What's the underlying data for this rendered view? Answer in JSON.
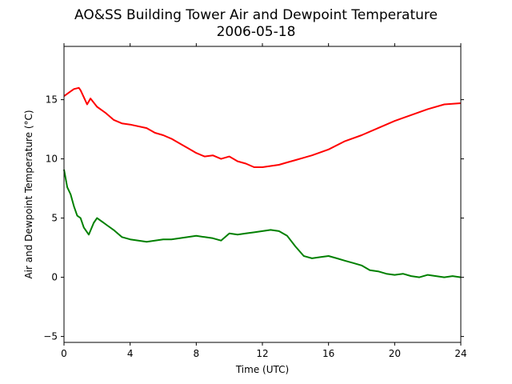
{
  "chart_data": {
    "type": "line",
    "title": "AO&SS Building Tower Air and Dewpoint Temperature",
    "subtitle": "2006-05-18",
    "xlabel": "Time (UTC)",
    "ylabel": "Air and Dewpoint Temperature (°C)",
    "xlim": [
      0,
      24
    ],
    "ylim": [
      -5.5,
      19.5
    ],
    "x_ticks": [
      0,
      4,
      8,
      12,
      16,
      20,
      24
    ],
    "y_ticks": [
      -5,
      0,
      5,
      10,
      15
    ],
    "grid": false,
    "series": [
      {
        "color": "#ff0000",
        "x": [
          0,
          0.3,
          0.6,
          0.9,
          1.0,
          1.2,
          1.4,
          1.6,
          2.0,
          2.5,
          3.0,
          3.5,
          4.0,
          5.0,
          5.5,
          6.0,
          6.5,
          7.0,
          7.5,
          8.0,
          8.5,
          9.0,
          9.5,
          10.0,
          10.5,
          11.0,
          11.5,
          12.0,
          12.5,
          13.0,
          13.5,
          14.0,
          15.0,
          16.0,
          17.0,
          18.0,
          19.0,
          20.0,
          21.0,
          22.0,
          23.0,
          24.0
        ],
        "values": [
          15.3,
          15.6,
          15.9,
          16.0,
          15.8,
          15.2,
          14.6,
          15.1,
          14.4,
          13.9,
          13.3,
          13.0,
          12.9,
          12.6,
          12.2,
          12.0,
          11.7,
          11.3,
          10.9,
          10.5,
          10.2,
          10.3,
          10.0,
          10.2,
          9.8,
          9.6,
          9.3,
          9.3,
          9.4,
          9.5,
          9.7,
          9.9,
          10.3,
          10.8,
          11.5,
          12.0,
          12.6,
          13.2,
          13.7,
          14.2,
          14.6,
          14.7
        ]
      },
      {
        "color": "#008000",
        "x": [
          0,
          0.2,
          0.4,
          0.6,
          0.8,
          1.0,
          1.2,
          1.5,
          1.8,
          2.0,
          2.3,
          2.6,
          3.0,
          3.5,
          4.0,
          4.5,
          5.0,
          5.5,
          6.0,
          6.5,
          7.0,
          7.5,
          8.0,
          8.5,
          9.0,
          9.5,
          10.0,
          10.5,
          11.0,
          11.5,
          12.0,
          12.5,
          13.0,
          13.5,
          14.0,
          14.5,
          15.0,
          15.5,
          16.0,
          16.5,
          17.0,
          17.5,
          18.0,
          18.5,
          19.0,
          19.5,
          20.0,
          20.5,
          21.0,
          21.5,
          22.0,
          22.5,
          23.0,
          23.5,
          24.0
        ],
        "values": [
          9.1,
          7.6,
          7.0,
          6.0,
          5.2,
          5.0,
          4.2,
          3.6,
          4.6,
          5.0,
          4.7,
          4.4,
          4.0,
          3.4,
          3.2,
          3.1,
          3.0,
          3.1,
          3.2,
          3.2,
          3.3,
          3.4,
          3.5,
          3.4,
          3.3,
          3.1,
          3.7,
          3.6,
          3.7,
          3.8,
          3.9,
          4.0,
          3.9,
          3.5,
          2.6,
          1.8,
          1.6,
          1.7,
          1.8,
          1.6,
          1.4,
          1.2,
          1.0,
          0.6,
          0.5,
          0.3,
          0.2,
          0.3,
          0.1,
          0.0,
          0.2,
          0.1,
          0.0,
          0.1,
          0.0
        ]
      }
    ]
  }
}
